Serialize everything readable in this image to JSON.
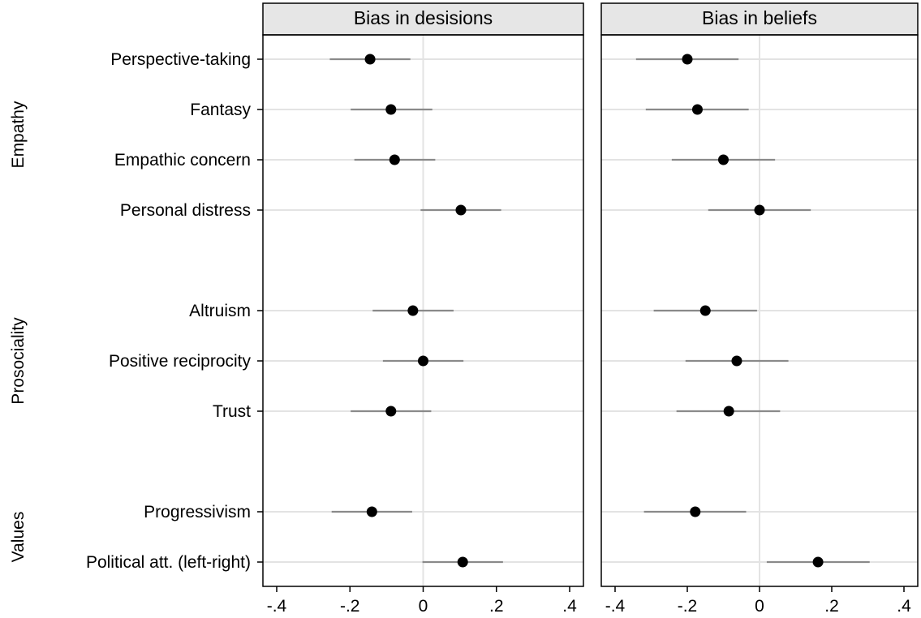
{
  "chart_data": {
    "type": "scatter",
    "subtype": "coefficient-plot-with-confidence-intervals",
    "panels": [
      {
        "title": "Bias in desisions",
        "x_ticks": [
          -0.4,
          -0.2,
          0,
          0.2,
          0.4
        ],
        "x_tick_labels": [
          "-.4",
          "-.2",
          "0",
          ".2",
          ".4"
        ],
        "xlim": [
          -0.4,
          0.4
        ],
        "points": [
          {
            "category": "Perspective-taking",
            "estimate": -0.145,
            "ci": [
              -0.255,
              -0.035
            ]
          },
          {
            "category": "Fantasy",
            "estimate": -0.088,
            "ci": [
              -0.198,
              0.025
            ]
          },
          {
            "category": "Empathic concern",
            "estimate": -0.078,
            "ci": [
              -0.188,
              0.033
            ]
          },
          {
            "category": "Personal distress",
            "estimate": 0.103,
            "ci": [
              -0.007,
              0.213
            ]
          },
          {
            "category": "Altruism",
            "estimate": -0.028,
            "ci": [
              -0.138,
              0.083
            ]
          },
          {
            "category": "Positive reciprocity",
            "estimate": 0.0,
            "ci": [
              -0.11,
              0.11
            ]
          },
          {
            "category": "Trust",
            "estimate": -0.088,
            "ci": [
              -0.198,
              0.022
            ]
          },
          {
            "category": "Progressivism",
            "estimate": -0.14,
            "ci": [
              -0.25,
              -0.03
            ]
          },
          {
            "category": "Political att. (left-right)",
            "estimate": 0.108,
            "ci": [
              -0.002,
              0.218
            ]
          }
        ]
      },
      {
        "title": "Bias in beliefs",
        "x_ticks": [
          -0.4,
          -0.2,
          0,
          0.2,
          0.4
        ],
        "x_tick_labels": [
          "-.4",
          "-.2",
          "0",
          ".2",
          ".4"
        ],
        "xlim": [
          -0.4,
          0.4
        ],
        "points": [
          {
            "category": "Perspective-taking",
            "estimate": -0.2,
            "ci": [
              -0.342,
              -0.058
            ]
          },
          {
            "category": "Fantasy",
            "estimate": -0.172,
            "ci": [
              -0.315,
              -0.03
            ]
          },
          {
            "category": "Empathic concern",
            "estimate": -0.1,
            "ci": [
              -0.243,
              0.043
            ]
          },
          {
            "category": "Personal distress",
            "estimate": 0.0,
            "ci": [
              -0.142,
              0.142
            ]
          },
          {
            "category": "Altruism",
            "estimate": -0.15,
            "ci": [
              -0.293,
              -0.007
            ]
          },
          {
            "category": "Positive reciprocity",
            "estimate": -0.063,
            "ci": [
              -0.205,
              0.08
            ]
          },
          {
            "category": "Trust",
            "estimate": -0.085,
            "ci": [
              -0.23,
              0.057
            ]
          },
          {
            "category": "Progressivism",
            "estimate": -0.178,
            "ci": [
              -0.32,
              -0.037
            ]
          },
          {
            "category": "Political att. (left-right)",
            "estimate": 0.162,
            "ci": [
              0.02,
              0.305
            ]
          }
        ]
      }
    ],
    "groups": [
      {
        "name": "Empathy",
        "items": [
          "Perspective-taking",
          "Fantasy",
          "Empathic concern",
          "Personal distress"
        ]
      },
      {
        "name": "Prosociality",
        "items": [
          "Altruism",
          "Positive reciprocity",
          "Trust"
        ]
      },
      {
        "name": "Values",
        "items": [
          "Progressivism",
          "Political att. (left-right)"
        ]
      }
    ],
    "grid": true,
    "zero_reference_line": true,
    "colors": {
      "marker": "#000000",
      "ci_line": "#8a8a8a",
      "grid": "#e3e3e3",
      "strip_fill": "#e6e6e6",
      "frame": "#000000"
    }
  }
}
